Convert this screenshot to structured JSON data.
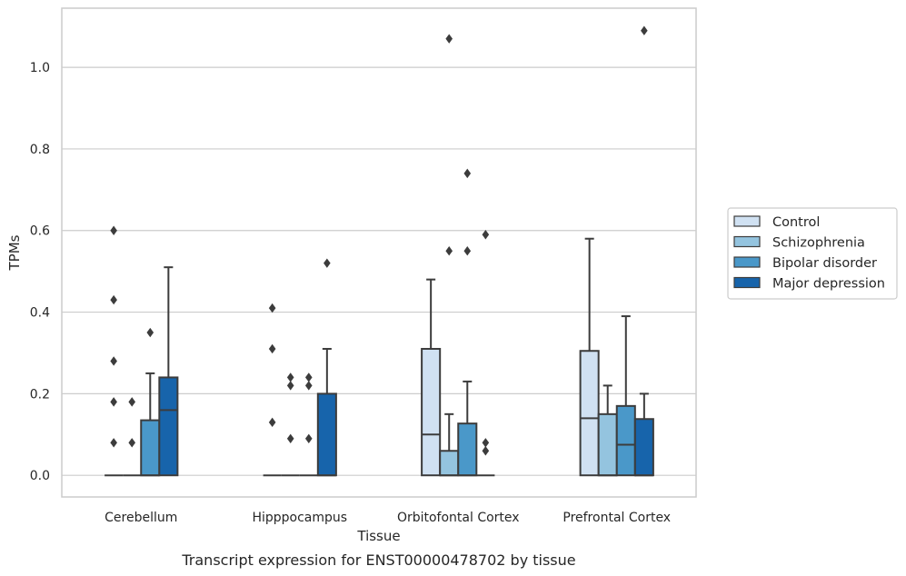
{
  "chart_data": {
    "type": "boxplot",
    "xlabel": "Tissue",
    "ylabel": "TPMs",
    "caption": "Transcript expression for ENST00000478702 by tissue",
    "categories": [
      "Cerebellum",
      "Hipppocampus",
      "Orbitofontal Cortex",
      "Prefrontal Cortex"
    ],
    "ylim": [
      -0.053,
      1.145
    ],
    "yticks": [
      0.0,
      0.2,
      0.4,
      0.6,
      0.8,
      1.0
    ],
    "ytick_labels": [
      "0.0",
      "0.2",
      "0.4",
      "0.6",
      "0.8",
      "1.0"
    ],
    "grid": "horizontal",
    "legend_position": "right",
    "series": [
      {
        "name": "Control",
        "color": "#d0e1f2",
        "boxes": [
          {
            "q1": 0,
            "median": 0,
            "q3": 0,
            "whisker_low": 0,
            "whisker_high": 0,
            "outliers": [
              0.08,
              0.18,
              0.28,
              0.43,
              0.6
            ]
          },
          {
            "q1": 0,
            "median": 0,
            "q3": 0,
            "whisker_low": 0,
            "whisker_high": 0,
            "outliers": [
              0.13,
              0.31,
              0.41
            ]
          },
          {
            "q1": 0,
            "median": 0.1,
            "q3": 0.31,
            "whisker_low": 0,
            "whisker_high": 0.48,
            "outliers": []
          },
          {
            "q1": 0,
            "median": 0.14,
            "q3": 0.305,
            "whisker_low": 0,
            "whisker_high": 0.58,
            "outliers": []
          }
        ]
      },
      {
        "name": "Schizophrenia",
        "color": "#94c4df",
        "boxes": [
          {
            "q1": 0,
            "median": 0,
            "q3": 0,
            "whisker_low": 0,
            "whisker_high": 0,
            "outliers": [
              0.08,
              0.18
            ]
          },
          {
            "q1": 0,
            "median": 0,
            "q3": 0,
            "whisker_low": 0,
            "whisker_high": 0,
            "outliers": [
              0.09,
              0.22,
              0.24
            ]
          },
          {
            "q1": 0,
            "median": 0,
            "q3": 0.06,
            "whisker_low": 0,
            "whisker_high": 0.15,
            "outliers": [
              0.55,
              1.07
            ]
          },
          {
            "q1": 0,
            "median": 0,
            "q3": 0.15,
            "whisker_low": 0,
            "whisker_high": 0.22,
            "outliers": []
          }
        ]
      },
      {
        "name": "Bipolar disorder",
        "color": "#4a98c9",
        "boxes": [
          {
            "q1": 0,
            "median": 0,
            "q3": 0.135,
            "whisker_low": 0,
            "whisker_high": 0.25,
            "outliers": [
              0.35
            ]
          },
          {
            "q1": 0,
            "median": 0,
            "q3": 0,
            "whisker_low": 0,
            "whisker_high": 0,
            "outliers": [
              0.09,
              0.22,
              0.24
            ]
          },
          {
            "q1": 0,
            "median": 0,
            "q3": 0.127,
            "whisker_low": 0,
            "whisker_high": 0.23,
            "outliers": [
              0.55,
              0.74
            ]
          },
          {
            "q1": 0,
            "median": 0.075,
            "q3": 0.17,
            "whisker_low": 0,
            "whisker_high": 0.39,
            "outliers": []
          }
        ]
      },
      {
        "name": "Major depression",
        "color": "#1764ab",
        "boxes": [
          {
            "q1": 0,
            "median": 0.16,
            "q3": 0.24,
            "whisker_low": 0,
            "whisker_high": 0.51,
            "outliers": []
          },
          {
            "q1": 0,
            "median": 0,
            "q3": 0.2,
            "whisker_low": 0,
            "whisker_high": 0.31,
            "outliers": [
              0.52
            ]
          },
          {
            "q1": 0,
            "median": 0,
            "q3": 0,
            "whisker_low": 0,
            "whisker_high": 0,
            "outliers": [
              0.06,
              0.08,
              0.59
            ]
          },
          {
            "q1": 0,
            "median": 0,
            "q3": 0.138,
            "whisker_low": 0,
            "whisker_high": 0.2,
            "outliers": [
              1.09
            ]
          }
        ]
      }
    ]
  }
}
